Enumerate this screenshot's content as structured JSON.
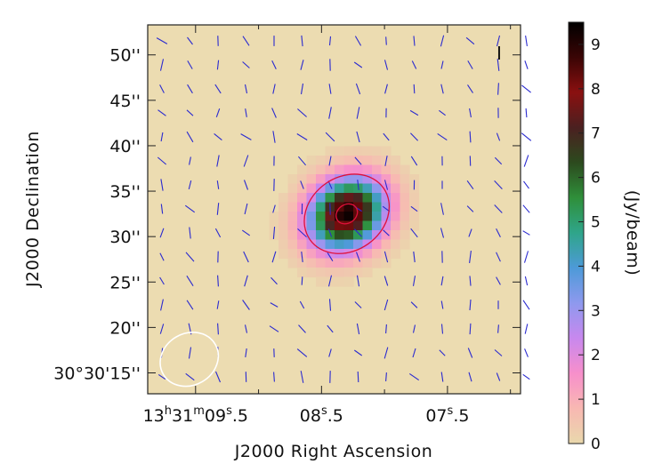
{
  "chart_data": {
    "type": "heatmap",
    "title": "",
    "xlabel": "J2000 Right Ascension",
    "ylabel": "J2000 Declination",
    "x_ticks": [
      {
        "label": "13h31m09s.5",
        "parts": [
          [
            "13",
            ""
          ],
          [
            "h",
            "sup"
          ],
          [
            "31",
            ""
          ],
          [
            "m",
            "sup"
          ],
          [
            "09",
            ""
          ],
          [
            "s",
            "sup"
          ],
          [
            ".5",
            ""
          ]
        ],
        "value": 9.5
      },
      {
        "label": "08s.5",
        "parts": [
          [
            "08",
            ""
          ],
          [
            "s",
            "sup"
          ],
          [
            ".5",
            ""
          ]
        ],
        "value": 8.5
      },
      {
        "label": "07s.5",
        "parts": [
          [
            "07",
            ""
          ],
          [
            "s",
            "sup"
          ],
          [
            ".5",
            ""
          ]
        ],
        "value": 7.5
      }
    ],
    "x_minor_ticks": [
      9.0,
      8.0,
      7.0
    ],
    "xlim": [
      9.88,
      6.92
    ],
    "y_ticks": [
      {
        "label": "30°30'15''",
        "value": 15
      },
      {
        "label": "20''",
        "value": 20
      },
      {
        "label": "25''",
        "value": 25
      },
      {
        "label": "30''",
        "value": 30
      },
      {
        "label": "35''",
        "value": 35
      },
      {
        "label": "40''",
        "value": 40
      },
      {
        "label": "45''",
        "value": 45
      },
      {
        "label": "50''",
        "value": 50
      }
    ],
    "ylim": [
      12.7,
      53.3
    ],
    "source": {
      "ra": 8.3,
      "dec": 32.5,
      "peak_jy_per_beam": 9.4
    },
    "contour_levels_jy_per_beam": [
      2.3,
      8.6
    ],
    "contour_color": "#e0103a",
    "vector_color": "#2a2ad0",
    "beam": {
      "ra": 9.55,
      "dec": 16.5,
      "major_arcsec": 6.6,
      "minor_arcsec": 5.7
    },
    "stokes_label": "I",
    "colorbar": {
      "label": "(Jy/beam)",
      "ticks": [
        "0",
        "1",
        "2",
        "3",
        "4",
        "5",
        "6",
        "7",
        "8",
        "9"
      ],
      "min": 0,
      "max": 9.5,
      "colormap": [
        "#e9d8ac",
        "#f8b8b2",
        "#f78fcb",
        "#c888ee",
        "#8e99ee",
        "#4d9ad8",
        "#2fa58a",
        "#2f8f3a",
        "#2c4a1e",
        "#4b2020",
        "#8a1010",
        "#3a0505",
        "#000000"
      ]
    }
  }
}
